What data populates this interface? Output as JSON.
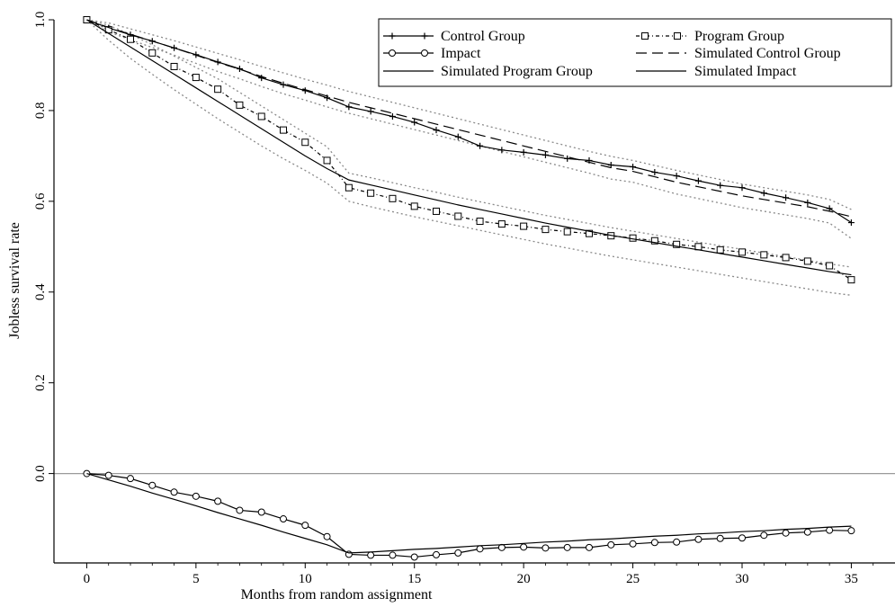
{
  "chart_data": {
    "type": "line",
    "xlabel": "Months from random assignment",
    "ylabel": "Jobless survival rate",
    "xlim": [
      -1.5,
      37
    ],
    "ylim": [
      -0.197,
      1.0
    ],
    "x_ticks": [
      0,
      5,
      10,
      15,
      20,
      25,
      30,
      35
    ],
    "x_tick_labels": [
      "0",
      "5",
      "10",
      "15",
      "20",
      "25",
      "30",
      "35"
    ],
    "y_ticks": [
      0.0,
      0.2,
      0.4,
      0.6,
      0.8,
      1.0
    ],
    "y_tick_labels": [
      "0.0",
      "0.2",
      "0.4",
      "0.6",
      "0.8",
      "1.0"
    ],
    "zero_line": 0.0,
    "legend_position": "top-right",
    "x": [
      0,
      1,
      2,
      3,
      4,
      5,
      6,
      7,
      8,
      9,
      10,
      11,
      12,
      13,
      14,
      15,
      16,
      17,
      18,
      19,
      20,
      21,
      22,
      23,
      24,
      25,
      26,
      27,
      28,
      29,
      30,
      31,
      32,
      33,
      34,
      35
    ],
    "series": [
      {
        "name": "Control Group",
        "marker": "plus",
        "dash": "",
        "color": "#000000",
        "values": [
          1.0,
          0.982,
          0.967,
          0.953,
          0.938,
          0.923,
          0.907,
          0.892,
          0.872,
          0.857,
          0.844,
          0.828,
          0.808,
          0.798,
          0.787,
          0.774,
          0.757,
          0.742,
          0.722,
          0.713,
          0.708,
          0.702,
          0.694,
          0.69,
          0.68,
          0.676,
          0.664,
          0.656,
          0.645,
          0.635,
          0.63,
          0.618,
          0.608,
          0.597,
          0.584,
          0.553
        ]
      },
      {
        "name": "Program Group",
        "marker": "square",
        "dash": "4,3,1,3",
        "color": "#000000",
        "values": [
          1.0,
          0.978,
          0.957,
          0.927,
          0.897,
          0.873,
          0.847,
          0.812,
          0.787,
          0.757,
          0.73,
          0.69,
          0.63,
          0.618,
          0.606,
          0.589,
          0.578,
          0.567,
          0.556,
          0.55,
          0.545,
          0.538,
          0.533,
          0.529,
          0.524,
          0.519,
          0.513,
          0.505,
          0.5,
          0.493,
          0.488,
          0.482,
          0.476,
          0.468,
          0.458,
          0.427
        ]
      },
      {
        "name": "Impact",
        "marker": "circle",
        "dash": "",
        "color": "#000000",
        "values": [
          0.0,
          -0.004,
          -0.011,
          -0.026,
          -0.041,
          -0.05,
          -0.061,
          -0.081,
          -0.085,
          -0.1,
          -0.114,
          -0.139,
          -0.178,
          -0.18,
          -0.18,
          -0.184,
          -0.179,
          -0.175,
          -0.166,
          -0.163,
          -0.162,
          -0.164,
          -0.163,
          -0.163,
          -0.157,
          -0.155,
          -0.152,
          -0.151,
          -0.145,
          -0.143,
          -0.142,
          -0.136,
          -0.131,
          -0.129,
          -0.125,
          -0.126
        ]
      },
      {
        "name": "Simulated Control Group",
        "marker": "none",
        "dash": "12,6",
        "color": "#000000",
        "values": [
          1.0,
          0.983,
          0.968,
          0.953,
          0.938,
          0.922,
          0.906,
          0.891,
          0.875,
          0.86,
          0.846,
          0.832,
          0.818,
          0.806,
          0.794,
          0.782,
          0.77,
          0.758,
          0.746,
          0.734,
          0.722,
          0.71,
          0.698,
          0.686,
          0.674,
          0.666,
          0.654,
          0.642,
          0.632,
          0.622,
          0.612,
          0.604,
          0.596,
          0.588,
          0.578,
          0.566
        ]
      },
      {
        "name": "Simulated Program Group",
        "marker": "none",
        "dash": "",
        "color": "#000000",
        "values": [
          1.0,
          0.97,
          0.94,
          0.91,
          0.88,
          0.85,
          0.82,
          0.79,
          0.76,
          0.73,
          0.7,
          0.672,
          0.647,
          0.636,
          0.625,
          0.614,
          0.603,
          0.592,
          0.582,
          0.572,
          0.562,
          0.552,
          0.543,
          0.534,
          0.525,
          0.517,
          0.509,
          0.501,
          0.493,
          0.485,
          0.477,
          0.469,
          0.461,
          0.453,
          0.445,
          0.438
        ]
      },
      {
        "name": "Simulated Impact",
        "marker": "none",
        "dash": "",
        "color": "#000000",
        "values": [
          0.0,
          -0.014,
          -0.028,
          -0.043,
          -0.057,
          -0.071,
          -0.086,
          -0.1,
          -0.114,
          -0.129,
          -0.143,
          -0.157,
          -0.175,
          -0.173,
          -0.17,
          -0.167,
          -0.165,
          -0.162,
          -0.159,
          -0.157,
          -0.154,
          -0.151,
          -0.149,
          -0.146,
          -0.144,
          -0.141,
          -0.138,
          -0.136,
          -0.133,
          -0.131,
          -0.128,
          -0.126,
          -0.123,
          -0.121,
          -0.118,
          -0.116
        ]
      }
    ],
    "confidence_bands": {
      "color": "#8a8a8a",
      "dash": "2,3",
      "bands": [
        {
          "upper": [
            1.0,
            0.993,
            0.98,
            0.967,
            0.954,
            0.94,
            0.926,
            0.912,
            0.897,
            0.883,
            0.869,
            0.856,
            0.842,
            0.83,
            0.818,
            0.806,
            0.794,
            0.782,
            0.77,
            0.758,
            0.746,
            0.734,
            0.722,
            0.71,
            0.699,
            0.69,
            0.679,
            0.668,
            0.658,
            0.648,
            0.638,
            0.63,
            0.622,
            0.614,
            0.604,
            0.582
          ],
          "lower": [
            1.0,
            0.973,
            0.956,
            0.939,
            0.922,
            0.904,
            0.886,
            0.87,
            0.853,
            0.837,
            0.823,
            0.808,
            0.794,
            0.782,
            0.77,
            0.758,
            0.746,
            0.734,
            0.722,
            0.71,
            0.698,
            0.686,
            0.674,
            0.662,
            0.649,
            0.642,
            0.629,
            0.616,
            0.606,
            0.596,
            0.586,
            0.578,
            0.57,
            0.562,
            0.552,
            0.518
          ]
        },
        {
          "upper": [
            1.0,
            0.988,
            0.968,
            0.945,
            0.92,
            0.895,
            0.87,
            0.84,
            0.81,
            0.78,
            0.75,
            0.72,
            0.662,
            0.652,
            0.641,
            0.63,
            0.62,
            0.609,
            0.599,
            0.589,
            0.579,
            0.569,
            0.56,
            0.551,
            0.542,
            0.534,
            0.526,
            0.518,
            0.51,
            0.502,
            0.494,
            0.486,
            0.478,
            0.47,
            0.462,
            0.455
          ],
          "lower": [
            1.0,
            0.955,
            0.915,
            0.88,
            0.846,
            0.814,
            0.782,
            0.752,
            0.722,
            0.694,
            0.668,
            0.64,
            0.6,
            0.588,
            0.577,
            0.566,
            0.556,
            0.546,
            0.536,
            0.526,
            0.516,
            0.506,
            0.497,
            0.488,
            0.479,
            0.471,
            0.463,
            0.455,
            0.447,
            0.439,
            0.431,
            0.423,
            0.415,
            0.407,
            0.399,
            0.393
          ]
        }
      ]
    }
  }
}
